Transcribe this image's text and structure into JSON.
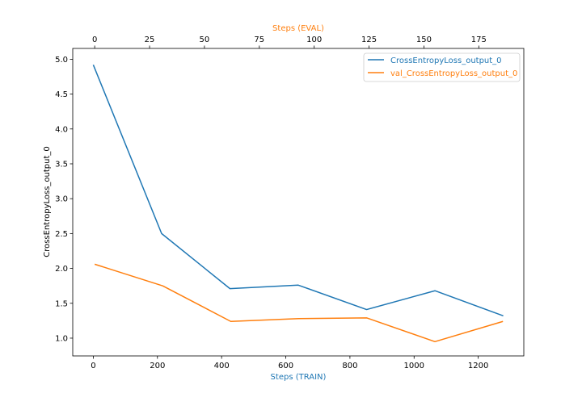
{
  "chart_data": {
    "type": "line",
    "title": "",
    "xlabel": "Steps (TRAIN)",
    "x2label": "Steps (EVAL)",
    "ylabel": "CrossEntropyLoss_output_0",
    "xlim": [
      -64,
      1342
    ],
    "x2lim": [
      -10,
      195.5
    ],
    "ylim": [
      0.745,
      5.155
    ],
    "x_ticks": [
      0,
      200,
      400,
      600,
      800,
      1000,
      1200
    ],
    "x2_ticks": [
      0,
      25,
      50,
      75,
      100,
      125,
      150,
      175
    ],
    "y_ticks": [
      1.0,
      1.5,
      2.0,
      2.5,
      3.0,
      3.5,
      4.0,
      4.5,
      5.0
    ],
    "grid": false,
    "legend_position": "top-right",
    "label_colors": {
      "xlabel": "#1f77b4",
      "x2label": "#ff7f0e"
    },
    "series": [
      {
        "name": "CrossEntropyLoss_output_0",
        "axis": "x",
        "color": "#1f77b4",
        "x": [
          0,
          213,
          426,
          639,
          852,
          1065,
          1278
        ],
        "y": [
          4.92,
          2.5,
          1.71,
          1.76,
          1.41,
          1.68,
          1.32
        ]
      },
      {
        "name": "val_CrossEntropyLoss_output_0",
        "axis": "x2",
        "color": "#ff7f0e",
        "x": [
          0,
          31,
          62,
          93,
          124,
          155,
          186
        ],
        "y": [
          2.06,
          1.75,
          1.24,
          1.28,
          1.29,
          0.95,
          1.24
        ]
      }
    ]
  }
}
